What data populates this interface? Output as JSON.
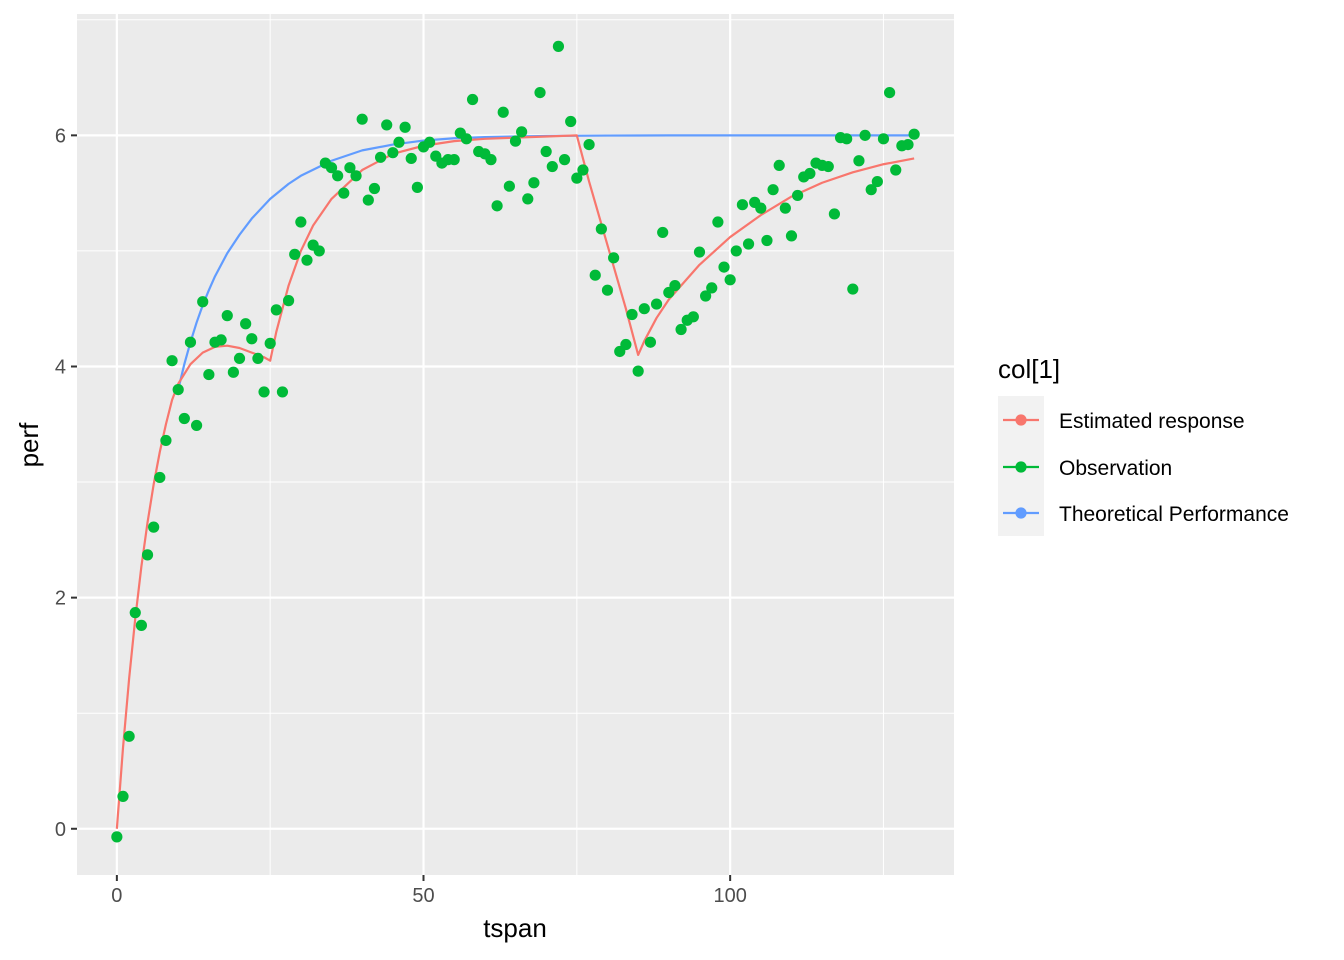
{
  "chart_data": {
    "type": "line",
    "title": "",
    "xlabel": "tspan",
    "ylabel": "perf",
    "xlim": [
      -6.5,
      136.5
    ],
    "ylim": [
      -0.4,
      7.05
    ],
    "x_ticks": [
      0,
      50,
      100
    ],
    "x_tick_labels": [
      "0",
      "50",
      "100"
    ],
    "y_ticks": [
      0,
      2,
      4,
      6
    ],
    "y_tick_labels": [
      "0",
      "2",
      "4",
      "6"
    ],
    "grid": true,
    "background": "#ebebeb",
    "legend_title": "col[1]",
    "legend_position": "right",
    "series": [
      {
        "name": "Estimated response",
        "kind": "line",
        "color": "#F8766D",
        "x": [
          0,
          1,
          2,
          3,
          4,
          5,
          6,
          7,
          8,
          9,
          10,
          12,
          14,
          16,
          18,
          20,
          22,
          24,
          25,
          26,
          28,
          30,
          32,
          35,
          40,
          45,
          50,
          55,
          60,
          65,
          70,
          75,
          77,
          80,
          83,
          85,
          86,
          88,
          90,
          95,
          100,
          105,
          110,
          115,
          120,
          125,
          130
        ],
        "y": [
          0,
          0.7,
          1.3,
          1.82,
          2.27,
          2.65,
          2.98,
          3.26,
          3.5,
          3.71,
          3.85,
          4.02,
          4.12,
          4.17,
          4.18,
          4.16,
          4.12,
          4.08,
          4.05,
          4.3,
          4.7,
          5.0,
          5.22,
          5.45,
          5.7,
          5.84,
          5.91,
          5.95,
          5.97,
          5.98,
          5.99,
          6.0,
          5.6,
          5.05,
          4.5,
          4.1,
          4.22,
          4.42,
          4.58,
          4.88,
          5.12,
          5.31,
          5.47,
          5.59,
          5.68,
          5.75,
          5.8
        ]
      },
      {
        "name": "Observation",
        "kind": "points",
        "color": "#00BA38",
        "x": [
          0,
          1,
          2,
          3,
          4,
          5,
          6,
          7,
          8,
          9,
          10,
          11,
          12,
          13,
          14,
          15,
          16,
          17,
          18,
          19,
          20,
          21,
          22,
          23,
          24,
          25,
          26,
          27,
          28,
          29,
          30,
          31,
          32,
          33,
          34,
          35,
          36,
          37,
          38,
          39,
          40,
          41,
          42,
          43,
          44,
          45,
          46,
          47,
          48,
          49,
          50,
          51,
          52,
          53,
          54,
          55,
          56,
          57,
          58,
          59,
          60,
          61,
          62,
          63,
          64,
          65,
          66,
          67,
          68,
          69,
          70,
          71,
          72,
          73,
          74,
          75,
          76,
          77,
          78,
          79,
          80,
          81,
          82,
          83,
          84,
          85,
          86,
          87,
          88,
          89,
          90,
          91,
          92,
          93,
          94,
          95,
          96,
          97,
          98,
          99,
          100,
          101,
          102,
          103,
          104,
          105,
          106,
          107,
          108,
          109,
          110,
          111,
          112,
          113,
          114,
          115,
          116,
          117,
          118,
          119,
          120,
          121,
          122,
          123,
          124,
          125,
          126,
          127,
          128,
          129,
          130
        ],
        "y": [
          -0.07,
          0.28,
          0.8,
          1.87,
          1.76,
          2.37,
          2.61,
          3.04,
          3.36,
          4.05,
          3.8,
          3.55,
          4.21,
          3.49,
          4.56,
          3.93,
          4.21,
          4.23,
          4.44,
          3.95,
          4.07,
          4.37,
          4.24,
          4.07,
          3.78,
          4.2,
          4.49,
          3.78,
          4.57,
          4.97,
          5.25,
          4.92,
          5.05,
          5.0,
          5.76,
          5.72,
          5.65,
          5.5,
          5.72,
          5.65,
          6.14,
          5.44,
          5.54,
          5.81,
          6.09,
          5.85,
          5.94,
          6.07,
          5.8,
          5.55,
          5.9,
          5.94,
          5.82,
          5.76,
          5.79,
          5.79,
          6.02,
          5.97,
          6.31,
          5.86,
          5.84,
          5.79,
          5.39,
          6.2,
          5.56,
          5.95,
          6.03,
          5.45,
          5.59,
          6.37,
          5.86,
          5.73,
          6.77,
          5.79,
          6.12,
          5.63,
          5.7,
          5.92,
          4.79,
          5.19,
          4.66,
          4.94,
          4.13,
          4.19,
          4.45,
          3.96,
          4.5,
          4.21,
          4.54,
          5.16,
          4.64,
          4.7,
          4.32,
          4.4,
          4.43,
          4.99,
          4.61,
          4.68,
          5.25,
          4.86,
          4.75,
          5.0,
          5.4,
          5.06,
          5.42,
          5.37,
          5.09,
          5.53,
          5.74,
          5.37,
          5.13,
          5.48,
          5.64,
          5.67,
          5.76,
          5.74,
          5.73,
          5.32,
          5.98,
          5.97,
          4.67,
          5.78,
          6.0,
          5.53,
          5.6,
          5.97,
          6.37,
          5.7,
          5.91,
          5.92,
          6.01
        ]
      },
      {
        "name": "Theoretical Performance",
        "kind": "line",
        "color": "#619CFF",
        "x": [
          10,
          11,
          12,
          13,
          14,
          15,
          16,
          18,
          20,
          22,
          25,
          28,
          30,
          35,
          40,
          45,
          50,
          55,
          60,
          70,
          80,
          90,
          100,
          110,
          120,
          130
        ],
        "y": [
          3.8,
          4.02,
          4.21,
          4.38,
          4.53,
          4.66,
          4.78,
          4.98,
          5.14,
          5.28,
          5.45,
          5.58,
          5.65,
          5.78,
          5.87,
          5.92,
          5.955,
          5.975,
          5.985,
          5.995,
          5.998,
          6.0,
          6.0,
          6.0,
          6.0,
          6.0
        ]
      }
    ]
  }
}
